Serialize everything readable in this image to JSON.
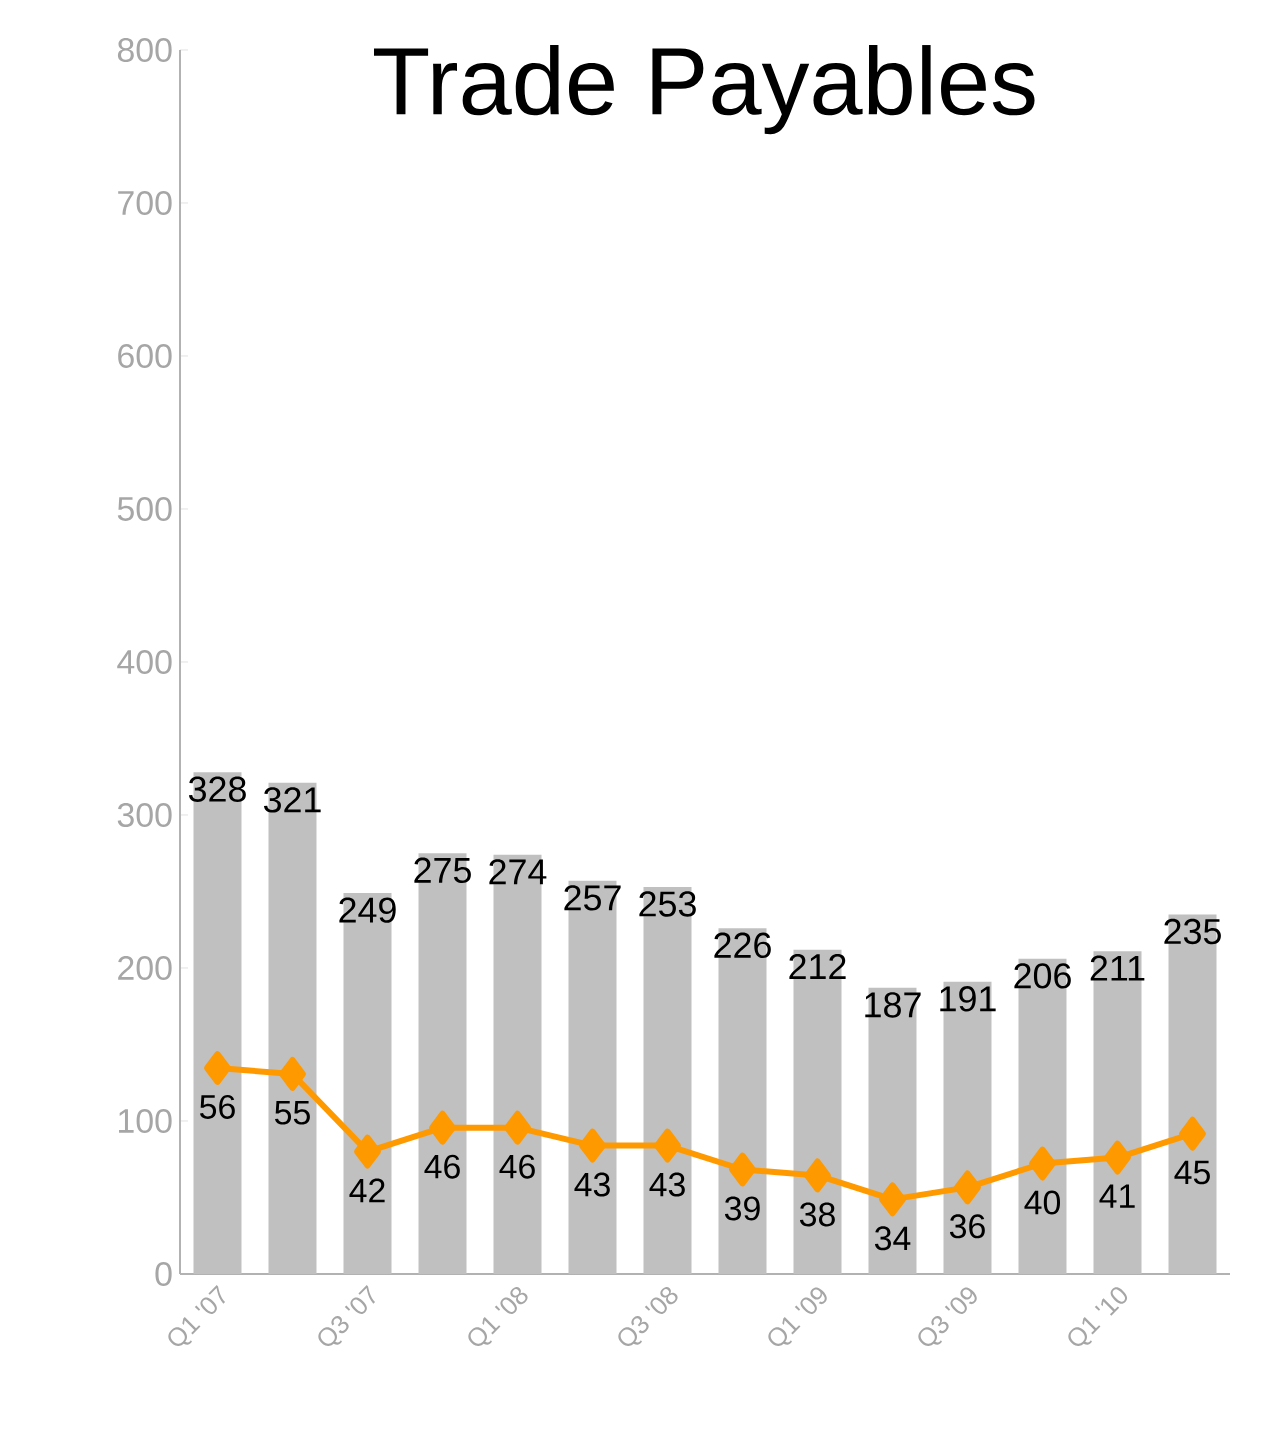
{
  "chart_data": {
    "type": "bar",
    "title": "Trade Payables",
    "categories": [
      "Q1 '07",
      null,
      "Q3 '07",
      null,
      "Q1 '08",
      null,
      "Q3 '08",
      null,
      "Q1 '09",
      null,
      "Q3 '09",
      null,
      "Q1 '10",
      null
    ],
    "series": [
      {
        "color": "#c0c0c0",
        "values": [
          328,
          321,
          249,
          275,
          274,
          257,
          253,
          226,
          212,
          187,
          191,
          206,
          211,
          235
        ]
      },
      {
        "type": "line",
        "axis": "y2",
        "color": "#ff9900",
        "marker": "diamond",
        "values": [
          56,
          55,
          42,
          46,
          46,
          43,
          43,
          39,
          38,
          34,
          36,
          40,
          41,
          45
        ]
      }
    ],
    "ylim": [
      0,
      800
    ],
    "yticks": [
      0,
      100,
      200,
      300,
      400,
      500,
      600,
      700,
      800
    ],
    "y2lim": [
      21.5,
      226.5
    ],
    "data_labels": true
  }
}
